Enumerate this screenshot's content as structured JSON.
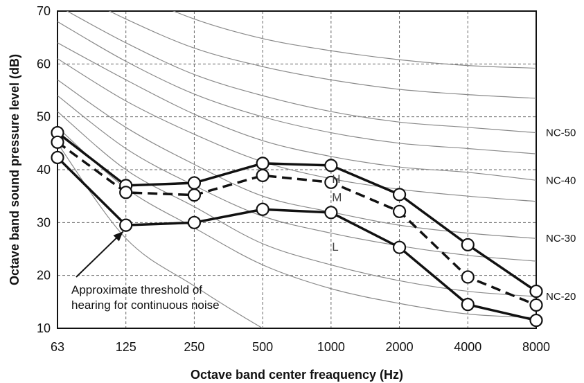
{
  "chart_data": {
    "type": "line",
    "xlabel": "Octave band center freaquency (Hz)",
    "ylabel": "Octave band sound pressure level (dB)",
    "categories": [
      "63",
      "125",
      "250",
      "500",
      "1000",
      "2000",
      "4000",
      "8000"
    ],
    "ylim": [
      10,
      70
    ],
    "yticks": [
      10,
      20,
      30,
      40,
      50,
      60,
      70
    ],
    "grid": true,
    "series": [
      {
        "name": "H",
        "style": "solid",
        "values": [
          47,
          37,
          37.5,
          41.2,
          40.8,
          35.3,
          25.8,
          17
        ]
      },
      {
        "name": "M",
        "style": "dashed",
        "values": [
          45.2,
          35.7,
          35.2,
          38.9,
          37.6,
          32.1,
          19.7,
          14.4
        ]
      },
      {
        "name": "L",
        "style": "solid",
        "values": [
          42.3,
          29.5,
          30,
          32.5,
          31.9,
          25.3,
          14.5,
          11.5
        ]
      }
    ],
    "nc_curves": [
      {
        "label": "",
        "values": [
          80.5,
          74,
          68.5,
          64.8,
          62.5,
          60.8,
          59.7,
          59.2
        ]
      },
      {
        "label": "",
        "values": [
          75,
          68.5,
          63,
          59.5,
          57,
          55.2,
          54.2,
          53.5
        ]
      },
      {
        "label": "NC-50",
        "values": [
          71,
          64,
          58,
          54,
          51,
          49,
          48,
          47
        ]
      },
      {
        "label": "",
        "values": [
          68,
          60.5,
          54.3,
          50,
          47,
          45,
          44,
          43
        ]
      },
      {
        "label": "NC-40",
        "values": [
          64,
          57,
          50.5,
          45.5,
          42.5,
          40.5,
          39.5,
          38
        ]
      },
      {
        "label": "",
        "values": [
          61,
          53,
          46.7,
          41.5,
          38.3,
          36.3,
          35,
          34
        ]
      },
      {
        "label": "NC-30",
        "values": [
          57,
          48,
          41,
          35,
          32,
          29.5,
          28,
          27
        ]
      },
      {
        "label": "",
        "values": [
          54,
          44,
          37,
          31.2,
          28,
          25.6,
          23.8,
          22.7
        ]
      },
      {
        "label": "NC-20",
        "values": [
          51,
          40,
          33,
          26,
          22,
          19,
          17,
          16
        ]
      },
      {
        "label": "",
        "values": [
          48,
          36.5,
          29,
          22,
          17.5,
          14.7,
          12.7,
          12
        ]
      }
    ],
    "threshold_curve": [
      45,
      27,
      18,
      10,
      3
    ],
    "annotation": [
      "Approximate threshold of",
      "hearing for continuous noise"
    ]
  }
}
